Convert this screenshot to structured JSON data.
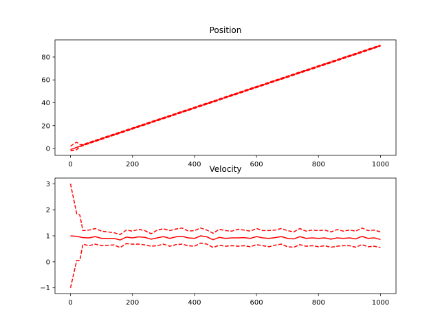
{
  "chart_data": [
    {
      "type": "line",
      "title": "Position",
      "xlabel": "",
      "ylabel": "",
      "xlim": [
        -50,
        1050
      ],
      "ylim": [
        -6,
        95
      ],
      "xticks": [
        0,
        200,
        400,
        600,
        800,
        1000
      ],
      "yticks": [
        0,
        20,
        40,
        60,
        80
      ],
      "grid": false,
      "color": "#ff0000",
      "series": [
        {
          "style": "solid",
          "x": [
            0,
            10,
            20,
            30,
            40,
            100,
            200,
            300,
            400,
            500,
            600,
            700,
            800,
            900,
            1000
          ],
          "y": [
            -1,
            0,
            1,
            2,
            3,
            8.5,
            17.5,
            26.6,
            35.6,
            44.7,
            53.8,
            62.8,
            71.9,
            80.9,
            90
          ]
        },
        {
          "style": "dashed",
          "x": [
            0,
            10,
            20,
            30,
            40,
            100,
            200,
            300,
            400,
            500,
            600,
            700,
            800,
            900,
            1000
          ],
          "y": [
            2,
            4,
            5.5,
            3.5,
            3.5,
            9,
            18,
            27.1,
            36.1,
            45.2,
            54.3,
            63.3,
            72.4,
            81.4,
            90.5
          ]
        },
        {
          "style": "dashed",
          "x": [
            0,
            10,
            20,
            30,
            40,
            100,
            200,
            300,
            400,
            500,
            600,
            700,
            800,
            900,
            1000
          ],
          "y": [
            -2,
            -1.5,
            -1,
            1.5,
            2.5,
            8,
            17,
            26.1,
            35.1,
            44.2,
            53.3,
            62.3,
            71.4,
            80.4,
            89.5
          ]
        }
      ]
    },
    {
      "type": "line",
      "title": "Velocity",
      "xlabel": "",
      "ylabel": "",
      "xlim": [
        -50,
        1050
      ],
      "ylim": [
        -1.22,
        3.22
      ],
      "xticks": [
        0,
        200,
        400,
        600,
        800,
        1000
      ],
      "yticks": [
        -1,
        0,
        1,
        2,
        3
      ],
      "grid": false,
      "color": "#ff0000",
      "series": [
        {
          "style": "solid",
          "x": [
            0,
            20,
            40,
            60,
            80,
            100,
            140,
            160,
            180,
            200,
            220,
            240,
            260,
            280,
            300,
            320,
            340,
            360,
            380,
            400,
            420,
            440,
            460,
            480,
            500,
            520,
            540,
            560,
            580,
            600,
            620,
            640,
            660,
            680,
            700,
            720,
            740,
            760,
            780,
            800,
            820,
            840,
            860,
            880,
            900,
            920,
            940,
            960,
            980,
            1000
          ],
          "y": [
            1.0,
            0.98,
            0.93,
            0.92,
            0.97,
            0.9,
            0.9,
            0.84,
            0.95,
            0.92,
            0.96,
            0.94,
            0.87,
            0.92,
            0.97,
            0.9,
            0.96,
            0.98,
            0.92,
            0.9,
            1.0,
            0.96,
            0.85,
            0.94,
            0.9,
            0.92,
            0.92,
            0.93,
            0.9,
            0.97,
            0.92,
            0.9,
            0.93,
            0.97,
            0.9,
            0.88,
            0.97,
            0.9,
            0.92,
            0.9,
            0.92,
            0.87,
            0.92,
            0.9,
            0.92,
            0.88,
            0.98,
            0.9,
            0.92,
            0.86
          ]
        },
        {
          "style": "dashed",
          "x": [
            0,
            20,
            30,
            40,
            60,
            80,
            100,
            140,
            160,
            180,
            200,
            220,
            240,
            260,
            280,
            300,
            320,
            340,
            360,
            380,
            400,
            420,
            440,
            460,
            480,
            500,
            520,
            540,
            560,
            580,
            600,
            620,
            640,
            660,
            680,
            700,
            720,
            740,
            760,
            780,
            800,
            820,
            840,
            860,
            880,
            900,
            920,
            940,
            960,
            980,
            1000
          ],
          "y": [
            3.0,
            1.85,
            1.8,
            1.2,
            1.22,
            1.28,
            1.18,
            1.12,
            1.05,
            1.22,
            1.18,
            1.25,
            1.2,
            1.08,
            1.22,
            1.27,
            1.2,
            1.26,
            1.3,
            1.18,
            1.2,
            1.3,
            1.22,
            1.1,
            1.25,
            1.2,
            1.18,
            1.25,
            1.22,
            1.18,
            1.28,
            1.2,
            1.2,
            1.22,
            1.28,
            1.2,
            1.15,
            1.28,
            1.18,
            1.22,
            1.2,
            1.22,
            1.15,
            1.24,
            1.18,
            1.22,
            1.18,
            1.3,
            1.2,
            1.22,
            1.15
          ]
        },
        {
          "style": "dashed",
          "x": [
            0,
            20,
            30,
            40,
            60,
            80,
            100,
            140,
            160,
            180,
            200,
            220,
            240,
            260,
            280,
            300,
            320,
            340,
            360,
            380,
            400,
            420,
            440,
            460,
            480,
            500,
            520,
            540,
            560,
            580,
            600,
            620,
            640,
            660,
            680,
            700,
            720,
            740,
            760,
            780,
            800,
            820,
            840,
            860,
            880,
            900,
            920,
            940,
            960,
            980,
            1000
          ],
          "y": [
            -1.0,
            0.05,
            0.05,
            0.68,
            0.62,
            0.68,
            0.62,
            0.65,
            0.55,
            0.7,
            0.68,
            0.68,
            0.65,
            0.6,
            0.62,
            0.68,
            0.6,
            0.66,
            0.68,
            0.62,
            0.6,
            0.72,
            0.68,
            0.55,
            0.64,
            0.6,
            0.62,
            0.6,
            0.62,
            0.58,
            0.66,
            0.62,
            0.58,
            0.64,
            0.68,
            0.58,
            0.56,
            0.66,
            0.6,
            0.62,
            0.58,
            0.62,
            0.56,
            0.6,
            0.62,
            0.62,
            0.56,
            0.66,
            0.58,
            0.6,
            0.55
          ]
        }
      ]
    }
  ]
}
